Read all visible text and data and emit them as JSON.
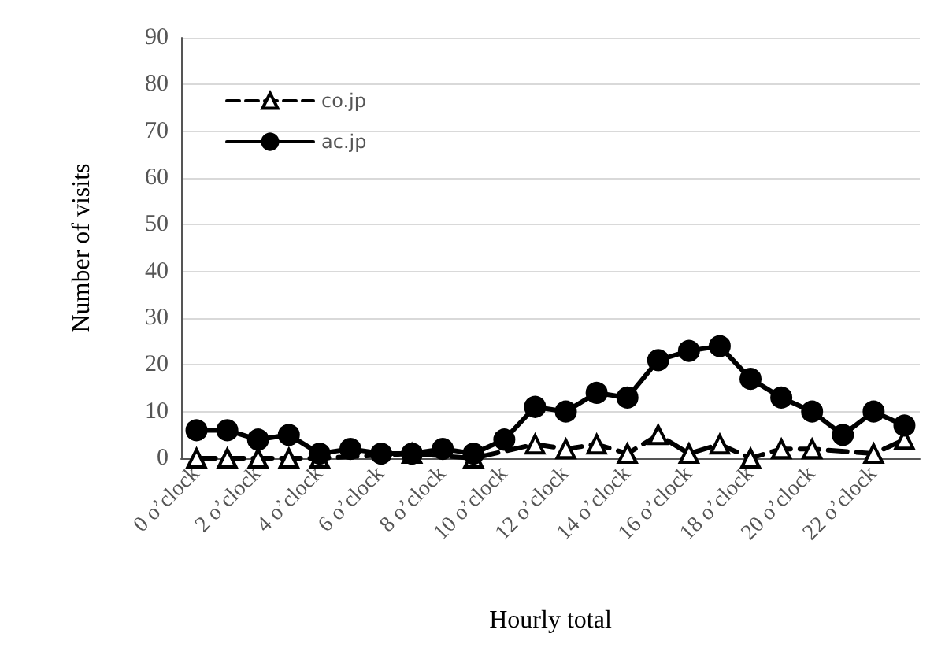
{
  "chart_data": {
    "type": "line",
    "xlabel": "Hourly total",
    "ylabel": "Number of visits",
    "categories": [
      "0 o’clock",
      null,
      "2 o’clock",
      null,
      "4 o’clock",
      null,
      "6 o’clock",
      null,
      "8 o’clock",
      null,
      "10 o’clock",
      null,
      "12 o’clock",
      null,
      "14 o’clock",
      null,
      "16 o’clock",
      null,
      "18 o’clock",
      null,
      "20 o’clock",
      null,
      "22 o’clock",
      null
    ],
    "series": [
      {
        "name": "co.jp",
        "color": "#000000",
        "marker": "triangle",
        "line_style": "dashed",
        "values": [
          0,
          0,
          0,
          0,
          0,
          null,
          null,
          1,
          null,
          0,
          null,
          3,
          2,
          3,
          1,
          5,
          1,
          3,
          0,
          2,
          2,
          null,
          1,
          4
        ]
      },
      {
        "name": "ac.jp",
        "color": "#000000",
        "marker": "circle",
        "line_style": "solid",
        "values": [
          6,
          6,
          4,
          5,
          1,
          2,
          1,
          1,
          2,
          1,
          4,
          11,
          10,
          14,
          13,
          21,
          23,
          24,
          17,
          13,
          10,
          5,
          10,
          7
        ]
      }
    ],
    "ylim": [
      0,
      90
    ],
    "yticks": [
      0,
      10,
      20,
      30,
      40,
      50,
      60,
      70,
      80,
      90
    ],
    "grid": "y",
    "legend": "top left"
  }
}
